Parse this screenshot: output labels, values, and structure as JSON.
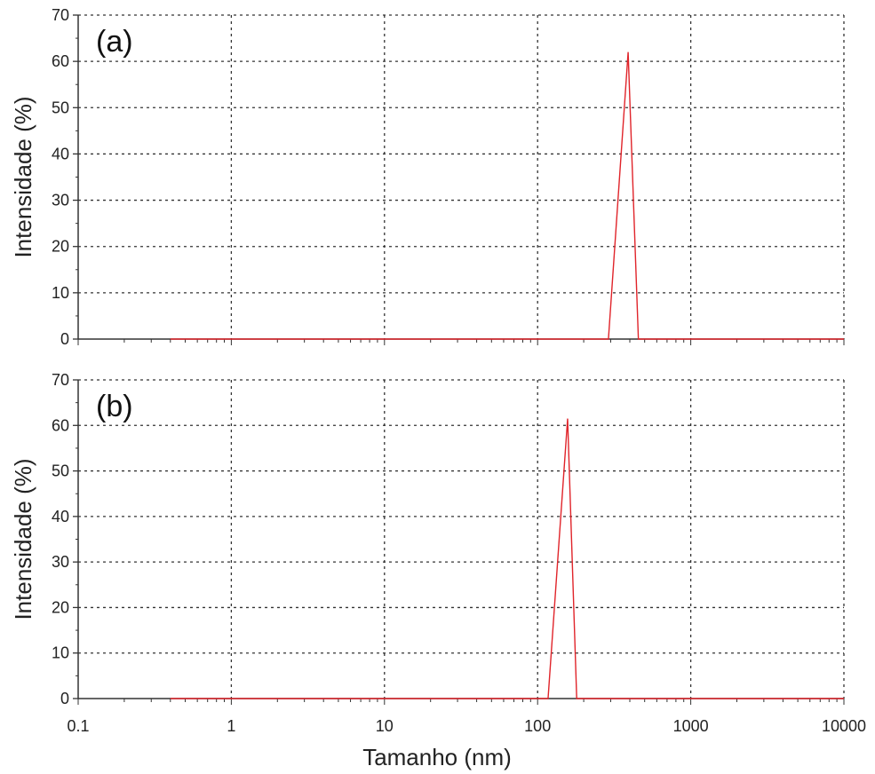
{
  "figure": {
    "xlabel": "Tamanho (nm)",
    "x_ticks": [
      "0.1",
      "1",
      "10",
      "100",
      "1000",
      "10000"
    ]
  },
  "chart_data": [
    {
      "type": "line",
      "panel_label": "(a)",
      "xlabel": "",
      "ylabel": "Intensidade (%)",
      "xscale": "log",
      "xlim": [
        0.1,
        10000
      ],
      "ylim": [
        0,
        70
      ],
      "y_ticks": [
        0,
        10,
        20,
        30,
        40,
        50,
        60,
        70
      ],
      "grid": true,
      "series_color": "#e0242a",
      "series": [
        {
          "x": [
            0.4,
            290,
            390,
            455,
            10000
          ],
          "y": [
            0,
            0,
            62,
            0,
            0
          ]
        }
      ]
    },
    {
      "type": "line",
      "panel_label": "(b)",
      "xlabel": "Tamanho (nm)",
      "ylabel": "Intensidade (%)",
      "xscale": "log",
      "xlim": [
        0.1,
        10000
      ],
      "ylim": [
        0,
        70
      ],
      "y_ticks": [
        0,
        10,
        20,
        30,
        40,
        50,
        60,
        70
      ],
      "grid": true,
      "series_color": "#e0242a",
      "series": [
        {
          "x": [
            0.4,
            117,
            157,
            180,
            10000
          ],
          "y": [
            0,
            0,
            61.5,
            0,
            0
          ]
        }
      ]
    }
  ]
}
